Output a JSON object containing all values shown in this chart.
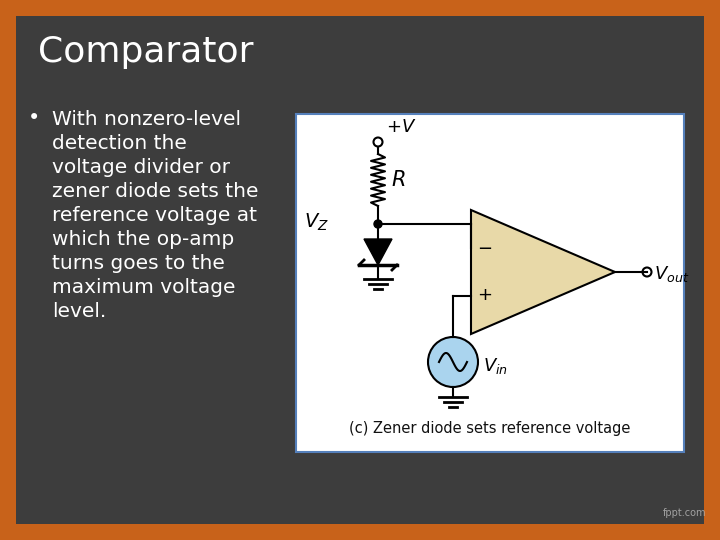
{
  "title": "Comparator",
  "bullet_lines": [
    "With nonzero-level",
    "detection the",
    "voltage divider or",
    "zener diode sets the",
    "reference voltage at",
    "which the op-amp",
    "turns goes to the",
    "maximum voltage",
    "level."
  ],
  "caption": "(c) Zener diode sets reference voltage",
  "bg_color": "#3d3d3d",
  "border_color": "#c8621a",
  "border_width": 16,
  "title_color": "#ffffff",
  "bullet_color": "#ffffff",
  "diagram_bg": "#ffffff",
  "diagram_border": "#5580bb",
  "opamp_color": "#e8d9a8",
  "vin_circle_color": "#aad4ee",
  "watermark": "fppt.com"
}
